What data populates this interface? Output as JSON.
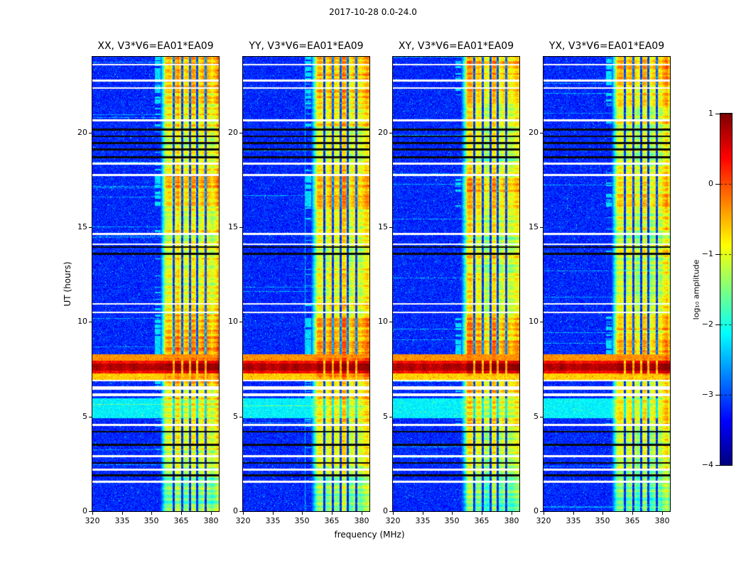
{
  "chart_data": {
    "type": "heatmap",
    "title": "2017-10-28 0.0-24.0",
    "xlabel": "frequency (MHz)",
    "ylabel": "UT (hours)",
    "x_range_mhz": [
      320,
      384
    ],
    "y_range_hours": [
      0,
      24
    ],
    "x_ticks": [
      320,
      335,
      350,
      365,
      380
    ],
    "y_ticks": [
      0,
      5,
      10,
      15,
      20
    ],
    "colormap": "jet",
    "value_range": [
      -4,
      1
    ],
    "panels": [
      {
        "pol": "XX",
        "title": "XX, V3*V6=EA01*EA09",
        "level_offset": 0
      },
      {
        "pol": "YY",
        "title": "YY, V3*V6=EA01*EA09",
        "level_offset": 0.05,
        "artifact_line_mhz": 351.5
      },
      {
        "pol": "XY",
        "title": "XY, V3*V6=EA01*EA09",
        "level_offset": -0.2
      },
      {
        "pol": "YX",
        "title": "YX, V3*V6=EA01*EA09",
        "level_offset": -0.1
      }
    ],
    "colorbar": {
      "label": "log₁₀ amplitude",
      "ticks": [
        1,
        0,
        -1,
        -2,
        -3,
        -4
      ]
    },
    "background": {
      "level": -3.55,
      "spread": 0.7
    },
    "rfi_band": {
      "f_start_mhz": 357.5,
      "f_soft_edge_mhz": 354,
      "dark_line_mhz": [
        361.3,
        365.4,
        369.3,
        373.2,
        377.2
      ]
    },
    "band_profile": [
      [
        0.0,
        1.8,
        -1.45
      ],
      [
        1.8,
        3.0,
        -1.1
      ],
      [
        3.0,
        4.3,
        -0.95
      ],
      [
        4.3,
        5.0,
        -0.75
      ],
      [
        5.0,
        6.4,
        -0.8
      ],
      [
        6.4,
        6.9,
        -0.7
      ],
      [
        6.9,
        7.28,
        -0.55
      ],
      [
        7.28,
        7.95,
        -0.4
      ],
      [
        7.95,
        9.0,
        -0.35
      ],
      [
        9.0,
        10.4,
        -0.55
      ],
      [
        10.4,
        11.0,
        -0.8
      ],
      [
        11.0,
        13.5,
        -0.95
      ],
      [
        13.5,
        14.7,
        -1.05
      ],
      [
        14.7,
        16.1,
        -0.9
      ],
      [
        16.1,
        17.8,
        -0.5
      ],
      [
        17.8,
        18.5,
        -0.75
      ],
      [
        18.5,
        20.3,
        -1.0
      ],
      [
        20.3,
        21.5,
        -0.8
      ],
      [
        21.5,
        22.8,
        -0.65
      ],
      [
        22.8,
        24.0,
        -0.5
      ]
    ],
    "events": {
      "white_lines_hours": [
        [
          23.6,
          0.04
        ],
        [
          22.75,
          0.05
        ],
        [
          22.35,
          0.05
        ],
        [
          20.65,
          0.05
        ],
        [
          18.35,
          0.05
        ],
        [
          17.75,
          0.05
        ],
        [
          14.65,
          0.05
        ],
        [
          14.1,
          0.05
        ],
        [
          10.95,
          0.05
        ],
        [
          10.5,
          0.05
        ],
        [
          6.9,
          0.05
        ],
        [
          6.5,
          0.09
        ],
        [
          6.15,
          0.09
        ],
        [
          4.55,
          0.05
        ],
        [
          2.9,
          0.05
        ],
        [
          2.2,
          0.05
        ],
        [
          1.55,
          0.05
        ]
      ],
      "black_lines_hours": [
        [
          20.15,
          0.05
        ],
        [
          19.8,
          0.045
        ],
        [
          19.45,
          0.045
        ],
        [
          19.1,
          0.045
        ],
        [
          18.7,
          0.045
        ],
        [
          13.95,
          0.045
        ],
        [
          13.6,
          0.045
        ],
        [
          4.2,
          0.05
        ],
        [
          3.5,
          0.05
        ],
        [
          2.55,
          0.05
        ],
        [
          1.9,
          0.05
        ]
      ],
      "cyan_band": {
        "t0": 4.9,
        "t1": 5.95,
        "level": -2.4
      },
      "burst": {
        "t0": 7.28,
        "t1": 7.95,
        "level": 0.35,
        "core_t0": 7.42,
        "core_t1": 7.8,
        "core_level": 0.75
      },
      "hot_rows": [
        {
          "t0": 7.95,
          "t1": 8.3,
          "level": -0.6
        },
        {
          "t0": 6.95,
          "t1": 7.28,
          "level": -0.9
        }
      ]
    }
  }
}
